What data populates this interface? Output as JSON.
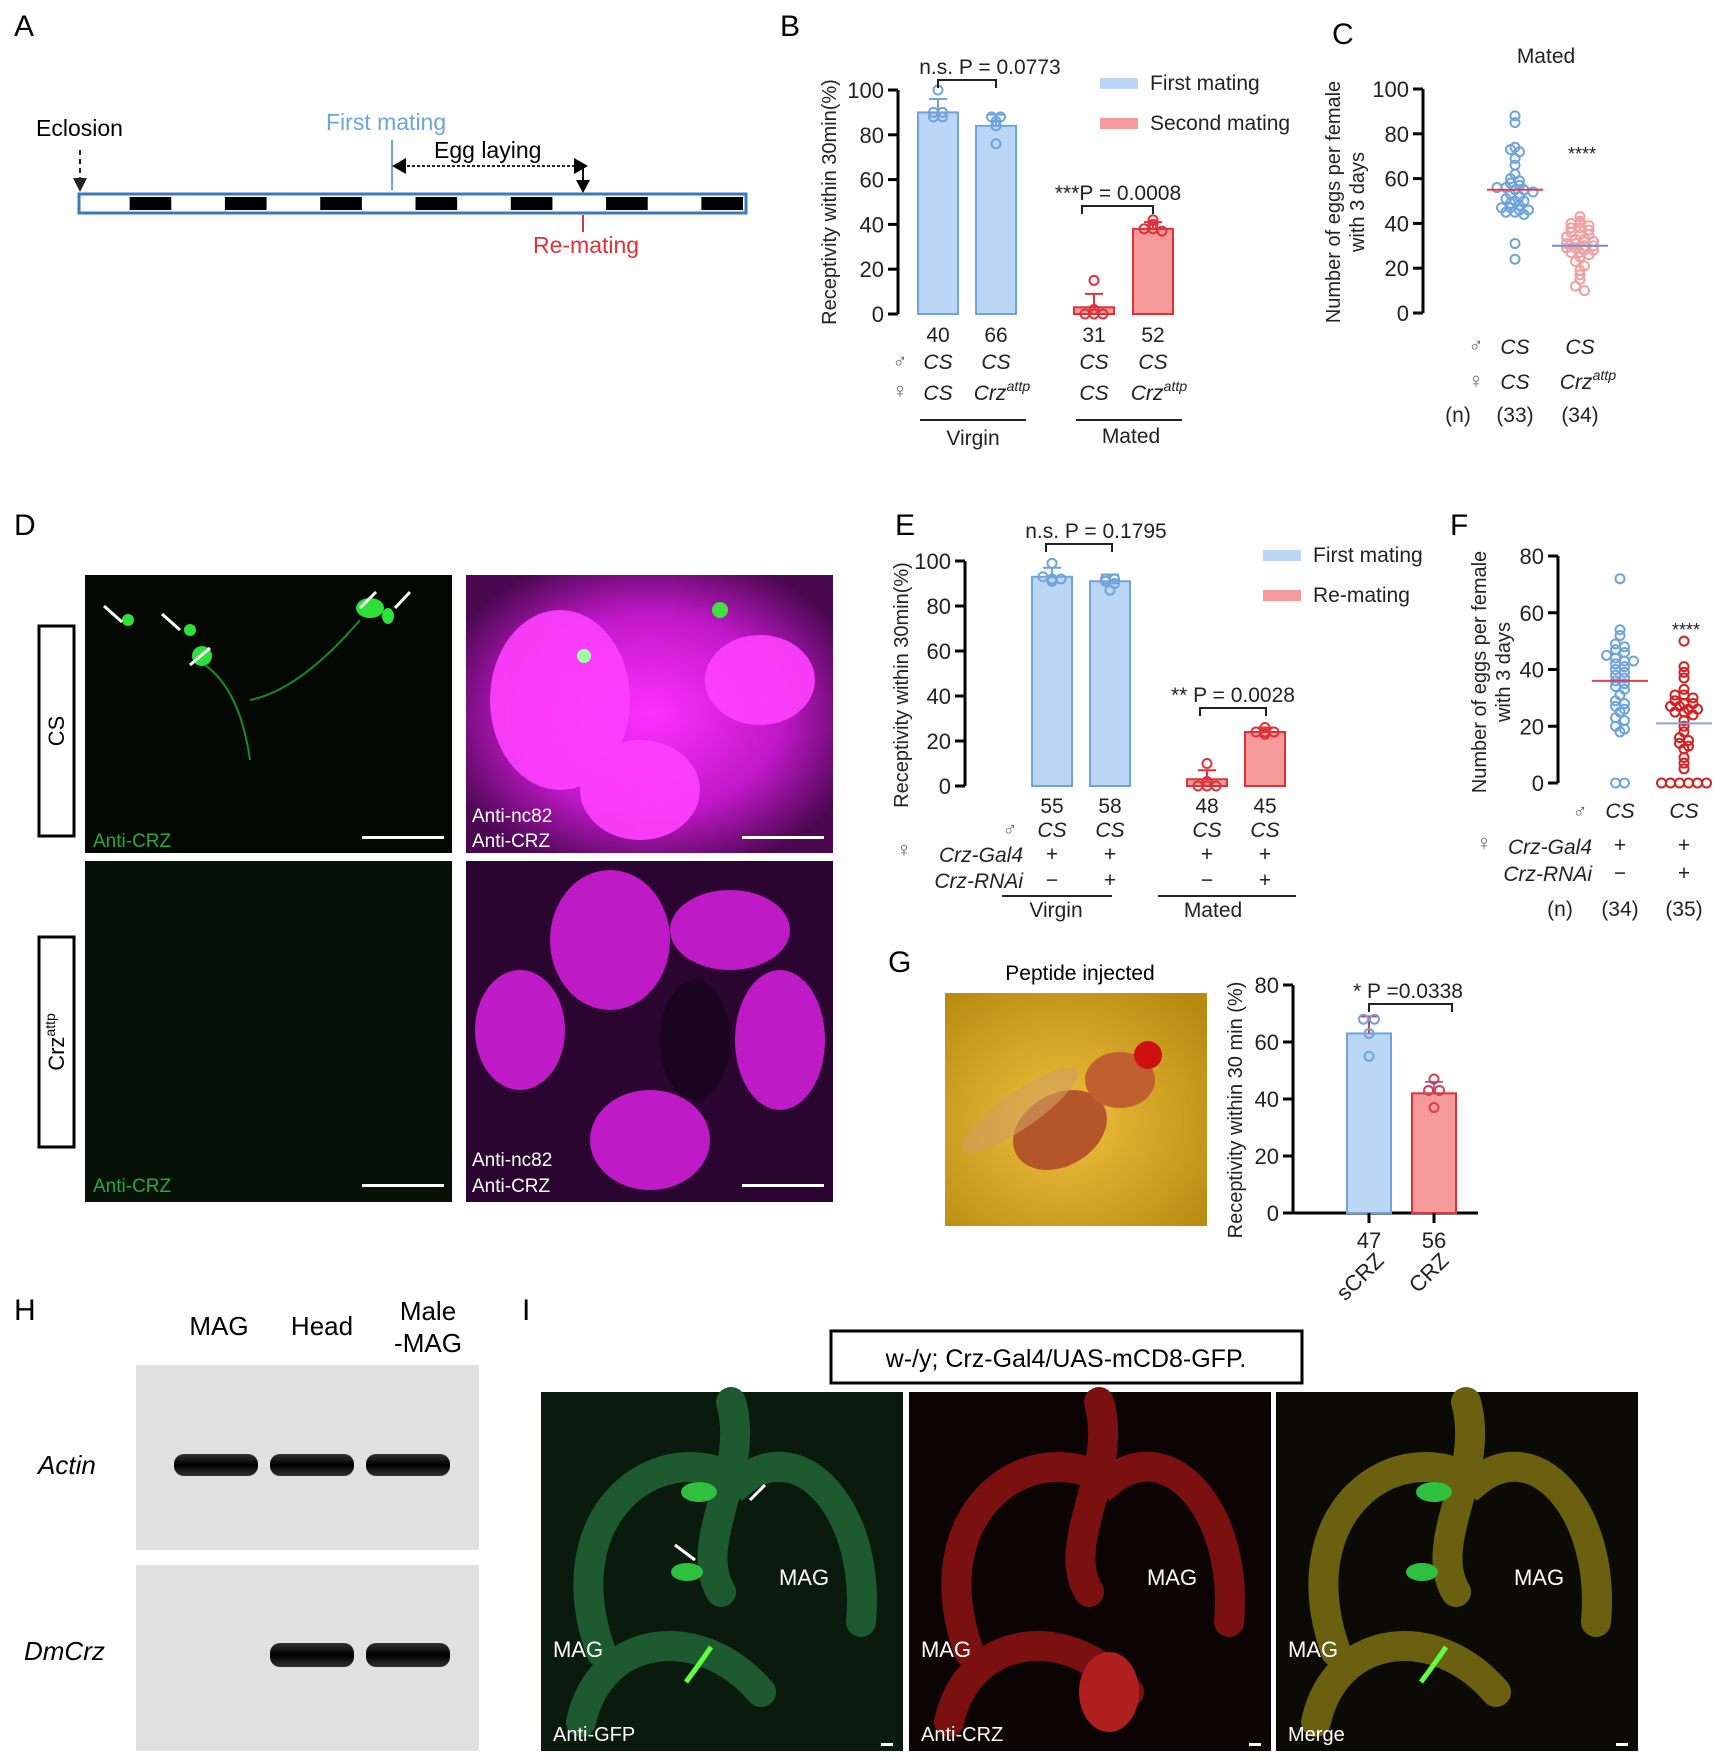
{
  "colors": {
    "blue_fill": "#bcd6f5",
    "blue_edge": "#6fa3dc",
    "red_fill": "#f59a9a",
    "red_edge": "#e0303a",
    "dark_red": "#d42020",
    "light_red": "#f0a0a0",
    "green": "#22cc33",
    "magenta": "#e020e0"
  },
  "panels": {
    "A": "A",
    "B": "B",
    "C": "C",
    "D": "D",
    "E": "E",
    "F": "F",
    "G": "G",
    "H": "H",
    "I": "I"
  },
  "timeline": {
    "eclosion": "Eclosion",
    "first_mating": "First mating",
    "egg_laying": "Egg laying",
    "re_mating": "Re-mating",
    "blocks": 14
  },
  "male_symbol": "♂",
  "female_symbol": "♀",
  "panelD": {
    "row_labels": [
      "CS",
      "Crz"
    ],
    "row2_sup": "attp",
    "captions": [
      "Anti-CRZ",
      "Anti-nc82",
      "Anti-CRZ",
      "Anti-CRZ",
      "Anti-nc82",
      "Anti-CRZ"
    ]
  },
  "panelG": {
    "photo_title": "Peptide injected"
  },
  "panelH": {
    "columns": [
      "MAG",
      "Head",
      "Male",
      "-MAG"
    ],
    "rows": [
      "Actin",
      "DmCrz"
    ]
  },
  "panelI": {
    "genotype": "w-/y; Crz-Gal4/UAS-mCD8-GFP.",
    "mag": "MAG",
    "captions": [
      "Anti-GFP",
      "Anti-CRZ",
      "Merge"
    ]
  },
  "chart_data": [
    {
      "id": "B",
      "type": "bar",
      "ylabel": "Receptivity within 30min(%)",
      "ylim": [
        0,
        100
      ],
      "yticks": [
        0,
        20,
        40,
        60,
        80,
        100
      ],
      "legend": [
        "First mating",
        "Second mating"
      ],
      "legend_placement": "top-right",
      "categories": [
        {
          "n": "40",
          "male": "CS",
          "female": "CS",
          "female_sup": ""
        },
        {
          "n": "66",
          "male": "CS",
          "female": "Crz",
          "female_sup": "attp"
        },
        {
          "n": "31",
          "male": "CS",
          "female": "CS",
          "female_sup": ""
        },
        {
          "n": "52",
          "male": "CS",
          "female": "Crz",
          "female_sup": "attp"
        }
      ],
      "groups": [
        "Virgin",
        "Mated"
      ],
      "means": [
        90,
        84,
        3,
        38
      ],
      "errors": [
        6,
        5,
        6,
        3
      ],
      "points": [
        [
          100,
          90,
          90,
          88,
          88
        ],
        [
          88,
          88,
          86,
          84,
          76
        ],
        [
          15,
          2,
          0,
          0,
          0
        ],
        [
          42,
          40,
          38,
          38,
          37
        ]
      ],
      "series_of_bar": [
        "First mating",
        "First mating",
        "Second mating",
        "Second mating"
      ],
      "comparisons": [
        {
          "text": "n.s. P = 0.0773",
          "bars": [
            0,
            1
          ]
        },
        {
          "text": "***P = 0.0008",
          "bars": [
            2,
            3
          ]
        }
      ]
    },
    {
      "id": "C",
      "type": "scatter",
      "title": "Mated",
      "ylabel": "Number of eggs per female with 3 days",
      "ylabel_lines": [
        "Number of eggs per female",
        "with 3 days"
      ],
      "ylim": [
        0,
        100
      ],
      "yticks": [
        0,
        20,
        40,
        60,
        80,
        100
      ],
      "categories": [
        {
          "male": "CS",
          "female": "CS",
          "female_sup": "",
          "n": "(33)"
        },
        {
          "male": "CS",
          "female": "Crz",
          "female_sup": "attp",
          "n": "(34)"
        }
      ],
      "n_label": "(n)",
      "significance": "****",
      "means": [
        55,
        30
      ],
      "points": [
        [
          88,
          85,
          74,
          73,
          72,
          69,
          66,
          62,
          60,
          59,
          58,
          57,
          56,
          56,
          55,
          55,
          54,
          53,
          52,
          51,
          50,
          50,
          49,
          48,
          47,
          47,
          46,
          46,
          45,
          45,
          44,
          31,
          24
        ],
        [
          43,
          41,
          40,
          40,
          39,
          38,
          38,
          37,
          36,
          35,
          35,
          34,
          33,
          33,
          32,
          31,
          31,
          30,
          30,
          29,
          29,
          28,
          28,
          27,
          27,
          26,
          25,
          23,
          21,
          19,
          17,
          15,
          12,
          10
        ]
      ]
    },
    {
      "id": "E",
      "type": "bar",
      "ylabel": "Receptivity within 30min(%)",
      "ylim": [
        0,
        100
      ],
      "yticks": [
        0,
        20,
        40,
        60,
        80,
        100
      ],
      "legend": [
        "First mating",
        "Re-mating"
      ],
      "legend_placement": "top-right",
      "categories": [
        {
          "n": "55",
          "male": "CS",
          "gal4": "+",
          "rnai": "−"
        },
        {
          "n": "58",
          "male": "CS",
          "gal4": "+",
          "rnai": "+"
        },
        {
          "n": "48",
          "male": "CS",
          "gal4": "+",
          "rnai": "−"
        },
        {
          "n": "45",
          "male": "CS",
          "gal4": "+",
          "rnai": "+"
        }
      ],
      "row_labels": [
        "Crz-Gal4",
        "Crz-RNAi"
      ],
      "groups": [
        "Virgin",
        "Mated"
      ],
      "means": [
        93,
        91,
        3,
        24
      ],
      "errors": [
        4,
        3,
        4,
        2
      ],
      "points": [
        [
          99,
          93,
          92,
          92,
          91
        ],
        [
          92,
          92,
          91,
          90,
          87
        ],
        [
          10,
          2,
          0,
          0,
          0
        ],
        [
          26,
          24,
          24,
          24,
          23
        ]
      ],
      "series_of_bar": [
        "First mating",
        "First mating",
        "Re-mating",
        "Re-mating"
      ],
      "comparisons": [
        {
          "text": "n.s. P = 0.1795",
          "bars": [
            0,
            1
          ]
        },
        {
          "text": "** P = 0.0028",
          "bars": [
            2,
            3
          ]
        }
      ]
    },
    {
      "id": "F",
      "type": "scatter",
      "ylabel": "Number of eggs per female with 3 days",
      "ylabel_lines": [
        "Number of eggs per female",
        "with 3 days"
      ],
      "ylim": [
        0,
        80
      ],
      "yticks": [
        0,
        20,
        40,
        60,
        80
      ],
      "categories": [
        {
          "male": "CS",
          "gal4": "+",
          "rnai": "−",
          "n": "(34)"
        },
        {
          "male": "CS",
          "gal4": "+",
          "rnai": "+",
          "n": "(35)"
        }
      ],
      "row_labels": [
        "Crz-Gal4",
        "Crz-RNAi"
      ],
      "n_label": "(n)",
      "significance": "****",
      "means": [
        36,
        21
      ],
      "points": [
        [
          72,
          54,
          52,
          49,
          48,
          47,
          46,
          45,
          44,
          43,
          43,
          42,
          41,
          40,
          39,
          38,
          37,
          36,
          35,
          34,
          33,
          31,
          29,
          28,
          27,
          26,
          25,
          23,
          22,
          20,
          19,
          18,
          0,
          0
        ],
        [
          50,
          41,
          39,
          37,
          33,
          31,
          31,
          30,
          29,
          28,
          28,
          27,
          27,
          26,
          26,
          25,
          25,
          24,
          22,
          20,
          18,
          16,
          15,
          14,
          13,
          12,
          9,
          7,
          5,
          0,
          0,
          0,
          0,
          0,
          0
        ]
      ]
    },
    {
      "id": "G",
      "type": "bar",
      "ylabel": "Receptivity within 30 min (%)",
      "ylim": [
        0,
        80
      ],
      "yticks": [
        0,
        20,
        40,
        60,
        80
      ],
      "categories": [
        {
          "n": "47",
          "name": "sCRZ"
        },
        {
          "n": "56",
          "name": "CRZ"
        }
      ],
      "means": [
        63,
        42
      ],
      "errors": [
        6,
        4
      ],
      "points": [
        [
          68,
          68,
          63,
          55
        ],
        [
          47,
          43,
          43,
          37
        ]
      ],
      "comparisons": [
        {
          "text": "* P =0.0338",
          "bars": [
            0,
            1
          ]
        }
      ]
    }
  ]
}
